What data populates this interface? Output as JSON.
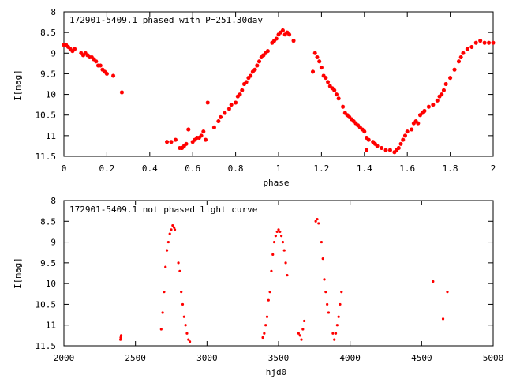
{
  "chart_data": [
    {
      "type": "scatter",
      "title": "172901-5409.1 phased with P=251.30day",
      "xlabel": "phase",
      "ylabel": "I[mag]",
      "xlim": [
        0,
        2
      ],
      "ylim": [
        11.5,
        8
      ],
      "y_inverted": true,
      "grid": false,
      "marker_color": "#ff0000",
      "marker": "plus",
      "x_ticks": [
        "0",
        "0.2",
        "0.4",
        "0.6",
        "0.8",
        "1",
        "1.2",
        "1.4",
        "1.6",
        "1.8",
        "2"
      ],
      "y_ticks": [
        "8",
        "8.5",
        "9",
        "9.5",
        "10",
        "10.5",
        "11",
        "11.5"
      ],
      "series": [
        {
          "points": [
            [
              0.0,
              8.8
            ],
            [
              0.01,
              8.8
            ],
            [
              0.02,
              8.85
            ],
            [
              0.03,
              8.9
            ],
            [
              0.04,
              8.95
            ],
            [
              0.05,
              8.9
            ],
            [
              0.08,
              9.0
            ],
            [
              0.09,
              9.05
            ],
            [
              0.1,
              9.0
            ],
            [
              0.11,
              9.05
            ],
            [
              0.12,
              9.1
            ],
            [
              0.13,
              9.1
            ],
            [
              0.14,
              9.15
            ],
            [
              0.15,
              9.2
            ],
            [
              0.16,
              9.3
            ],
            [
              0.17,
              9.3
            ],
            [
              0.18,
              9.4
            ],
            [
              0.19,
              9.45
            ],
            [
              0.2,
              9.5
            ],
            [
              0.23,
              9.55
            ],
            [
              0.27,
              9.95
            ],
            [
              0.48,
              11.15
            ],
            [
              0.5,
              11.15
            ],
            [
              0.52,
              11.1
            ],
            [
              0.54,
              11.3
            ],
            [
              0.55,
              11.3
            ],
            [
              0.56,
              11.25
            ],
            [
              0.57,
              11.2
            ],
            [
              0.58,
              10.85
            ],
            [
              0.6,
              11.15
            ],
            [
              0.61,
              11.1
            ],
            [
              0.62,
              11.05
            ],
            [
              0.63,
              11.05
            ],
            [
              0.64,
              11.0
            ],
            [
              0.65,
              10.9
            ],
            [
              0.66,
              11.1
            ],
            [
              0.67,
              10.2
            ],
            [
              0.7,
              10.8
            ],
            [
              0.72,
              10.65
            ],
            [
              0.73,
              10.55
            ],
            [
              0.75,
              10.45
            ],
            [
              0.77,
              10.35
            ],
            [
              0.78,
              10.25
            ],
            [
              0.8,
              10.2
            ],
            [
              0.81,
              10.05
            ],
            [
              0.82,
              10.0
            ],
            [
              0.83,
              9.9
            ],
            [
              0.84,
              9.75
            ],
            [
              0.85,
              9.7
            ],
            [
              0.86,
              9.6
            ],
            [
              0.87,
              9.55
            ],
            [
              0.88,
              9.45
            ],
            [
              0.89,
              9.4
            ],
            [
              0.9,
              9.3
            ],
            [
              0.91,
              9.2
            ],
            [
              0.92,
              9.1
            ],
            [
              0.93,
              9.05
            ],
            [
              0.94,
              9.0
            ],
            [
              0.95,
              8.95
            ],
            [
              0.97,
              8.75
            ],
            [
              0.98,
              8.7
            ],
            [
              0.99,
              8.65
            ],
            [
              1.0,
              8.55
            ],
            [
              1.01,
              8.5
            ],
            [
              1.02,
              8.45
            ],
            [
              1.03,
              8.55
            ],
            [
              1.04,
              8.5
            ],
            [
              1.05,
              8.55
            ],
            [
              1.07,
              8.7
            ],
            [
              1.16,
              9.45
            ],
            [
              1.17,
              9.0
            ],
            [
              1.18,
              9.1
            ],
            [
              1.19,
              9.2
            ],
            [
              1.2,
              9.35
            ],
            [
              1.21,
              9.55
            ],
            [
              1.22,
              9.6
            ],
            [
              1.23,
              9.7
            ],
            [
              1.24,
              9.8
            ],
            [
              1.25,
              9.85
            ],
            [
              1.26,
              9.9
            ],
            [
              1.27,
              10.0
            ],
            [
              1.28,
              10.1
            ],
            [
              1.3,
              10.3
            ],
            [
              1.31,
              10.45
            ],
            [
              1.32,
              10.5
            ],
            [
              1.33,
              10.55
            ],
            [
              1.34,
              10.6
            ],
            [
              1.35,
              10.65
            ],
            [
              1.36,
              10.7
            ],
            [
              1.37,
              10.75
            ],
            [
              1.38,
              10.8
            ],
            [
              1.39,
              10.85
            ],
            [
              1.4,
              10.9
            ],
            [
              1.41,
              11.05
            ],
            [
              1.42,
              11.1
            ],
            [
              1.44,
              11.15
            ],
            [
              1.45,
              11.2
            ],
            [
              1.46,
              11.25
            ],
            [
              1.48,
              11.3
            ],
            [
              1.5,
              11.35
            ],
            [
              1.52,
              11.35
            ],
            [
              1.54,
              11.4
            ],
            [
              1.55,
              11.35
            ],
            [
              1.56,
              11.3
            ],
            [
              1.57,
              11.2
            ],
            [
              1.58,
              11.1
            ],
            [
              1.59,
              11.0
            ],
            [
              1.6,
              10.9
            ],
            [
              1.62,
              10.85
            ],
            [
              1.63,
              10.7
            ],
            [
              1.64,
              10.65
            ],
            [
              1.65,
              10.7
            ],
            [
              1.66,
              10.5
            ],
            [
              1.67,
              10.45
            ],
            [
              1.68,
              10.4
            ],
            [
              1.7,
              10.3
            ],
            [
              1.72,
              10.25
            ],
            [
              1.74,
              10.15
            ],
            [
              1.75,
              10.05
            ],
            [
              1.76,
              10.0
            ],
            [
              1.77,
              9.9
            ],
            [
              1.78,
              9.75
            ],
            [
              1.8,
              9.6
            ],
            [
              1.82,
              9.4
            ],
            [
              1.84,
              9.2
            ],
            [
              1.85,
              9.1
            ],
            [
              1.86,
              9.0
            ],
            [
              1.88,
              8.9
            ],
            [
              1.9,
              8.85
            ],
            [
              1.92,
              8.75
            ],
            [
              1.94,
              8.7
            ],
            [
              1.96,
              8.75
            ],
            [
              1.98,
              8.75
            ],
            [
              2.0,
              8.75
            ],
            [
              1.41,
              11.35
            ]
          ]
        }
      ]
    },
    {
      "type": "scatter",
      "title": "172901-5409.1 not phased light curve",
      "xlabel": "hjd0",
      "ylabel": "I[mag]",
      "xlim": [
        2000,
        5000
      ],
      "ylim": [
        11.5,
        8
      ],
      "y_inverted": true,
      "grid": false,
      "marker_color": "#ff0000",
      "marker": "dot",
      "x_ticks": [
        "2000",
        "2500",
        "3000",
        "3500",
        "4000",
        "4500",
        "5000"
      ],
      "y_ticks": [
        "8",
        "8.5",
        "9",
        "9.5",
        "10",
        "10.5",
        "11",
        "11.5"
      ],
      "series": [
        {
          "points": [
            [
              2395,
              11.35
            ],
            [
              2397,
              11.3
            ],
            [
              2400,
              11.25
            ],
            [
              2680,
              11.1
            ],
            [
              2690,
              10.7
            ],
            [
              2700,
              10.2
            ],
            [
              2710,
              9.6
            ],
            [
              2720,
              9.2
            ],
            [
              2730,
              9.0
            ],
            [
              2740,
              8.8
            ],
            [
              2750,
              8.7
            ],
            [
              2760,
              8.6
            ],
            [
              2770,
              8.65
            ],
            [
              2775,
              8.7
            ],
            [
              2800,
              9.5
            ],
            [
              2810,
              9.7
            ],
            [
              2820,
              10.2
            ],
            [
              2830,
              10.5
            ],
            [
              2840,
              10.8
            ],
            [
              2850,
              11.0
            ],
            [
              2860,
              11.2
            ],
            [
              2870,
              11.35
            ],
            [
              2880,
              11.4
            ],
            [
              3390,
              11.3
            ],
            [
              3400,
              11.2
            ],
            [
              3410,
              11.0
            ],
            [
              3420,
              10.8
            ],
            [
              3430,
              10.4
            ],
            [
              3440,
              10.2
            ],
            [
              3450,
              9.7
            ],
            [
              3460,
              9.3
            ],
            [
              3470,
              9.0
            ],
            [
              3480,
              8.85
            ],
            [
              3490,
              8.75
            ],
            [
              3500,
              8.7
            ],
            [
              3510,
              8.75
            ],
            [
              3520,
              8.85
            ],
            [
              3530,
              9.0
            ],
            [
              3540,
              9.2
            ],
            [
              3550,
              9.5
            ],
            [
              3560,
              9.8
            ],
            [
              3640,
              11.2
            ],
            [
              3650,
              11.25
            ],
            [
              3660,
              11.35
            ],
            [
              3670,
              11.1
            ],
            [
              3680,
              10.9
            ],
            [
              3760,
              8.5
            ],
            [
              3770,
              8.45
            ],
            [
              3780,
              8.55
            ],
            [
              3800,
              9.0
            ],
            [
              3810,
              9.4
            ],
            [
              3820,
              9.9
            ],
            [
              3830,
              10.2
            ],
            [
              3840,
              10.5
            ],
            [
              3850,
              10.7
            ],
            [
              3880,
              11.2
            ],
            [
              3890,
              11.35
            ],
            [
              3900,
              11.2
            ],
            [
              3910,
              11.0
            ],
            [
              3920,
              10.8
            ],
            [
              3930,
              10.5
            ],
            [
              3940,
              10.2
            ],
            [
              4580,
              9.95
            ],
            [
              4650,
              10.85
            ],
            [
              4680,
              10.2
            ]
          ]
        }
      ]
    }
  ]
}
